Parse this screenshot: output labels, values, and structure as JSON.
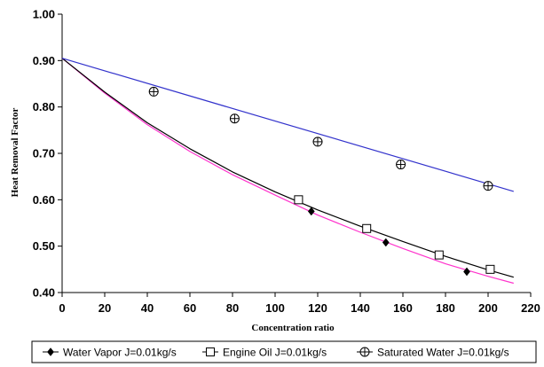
{
  "chart_data": {
    "type": "line",
    "xlabel": "Concentration ratio",
    "ylabel": "Heat Removal Factor",
    "xlim": [
      0,
      220
    ],
    "ylim": [
      0.4,
      1.0
    ],
    "x_ticks": [
      "0",
      "20",
      "40",
      "60",
      "80",
      "100",
      "120",
      "140",
      "160",
      "180",
      "200",
      "220"
    ],
    "y_ticks": [
      "0.40",
      "0.50",
      "0.60",
      "0.70",
      "0.80",
      "0.90",
      "1.00"
    ],
    "grid": false,
    "legend_position": "bottom",
    "series": [
      {
        "name": "Water Vapor J=0.01kg/s",
        "marker": "filled-diamond",
        "color": "#ff33cc",
        "curve": [
          [
            0,
            0.905
          ],
          [
            20,
            0.83
          ],
          [
            40,
            0.762
          ],
          [
            60,
            0.704
          ],
          [
            80,
            0.654
          ],
          [
            100,
            0.61
          ],
          [
            120,
            0.567
          ],
          [
            140,
            0.53
          ],
          [
            160,
            0.495
          ],
          [
            180,
            0.462
          ],
          [
            200,
            0.435
          ],
          [
            212,
            0.42
          ]
        ],
        "markers": [
          [
            117,
            0.575
          ],
          [
            152,
            0.508
          ],
          [
            190,
            0.445
          ]
        ]
      },
      {
        "name": "Engine Oil J=0.01kg/s",
        "marker": "open-square",
        "color": "#000000",
        "curve": [
          [
            0,
            0.905
          ],
          [
            20,
            0.832
          ],
          [
            40,
            0.766
          ],
          [
            60,
            0.71
          ],
          [
            80,
            0.66
          ],
          [
            100,
            0.617
          ],
          [
            120,
            0.578
          ],
          [
            140,
            0.543
          ],
          [
            160,
            0.51
          ],
          [
            180,
            0.478
          ],
          [
            200,
            0.449
          ],
          [
            212,
            0.433
          ]
        ],
        "markers": [
          [
            111,
            0.6
          ],
          [
            143,
            0.538
          ],
          [
            177,
            0.481
          ],
          [
            201,
            0.45
          ]
        ]
      },
      {
        "name": "Saturated Water J=0.01kg/s",
        "marker": "circle-plus",
        "color": "#3333cc",
        "curve": [
          [
            0,
            0.905
          ],
          [
            212,
            0.618
          ]
        ],
        "markers": [
          [
            43,
            0.833
          ],
          [
            81,
            0.775
          ],
          [
            120,
            0.725
          ],
          [
            159,
            0.676
          ],
          [
            200,
            0.63
          ]
        ]
      }
    ]
  }
}
